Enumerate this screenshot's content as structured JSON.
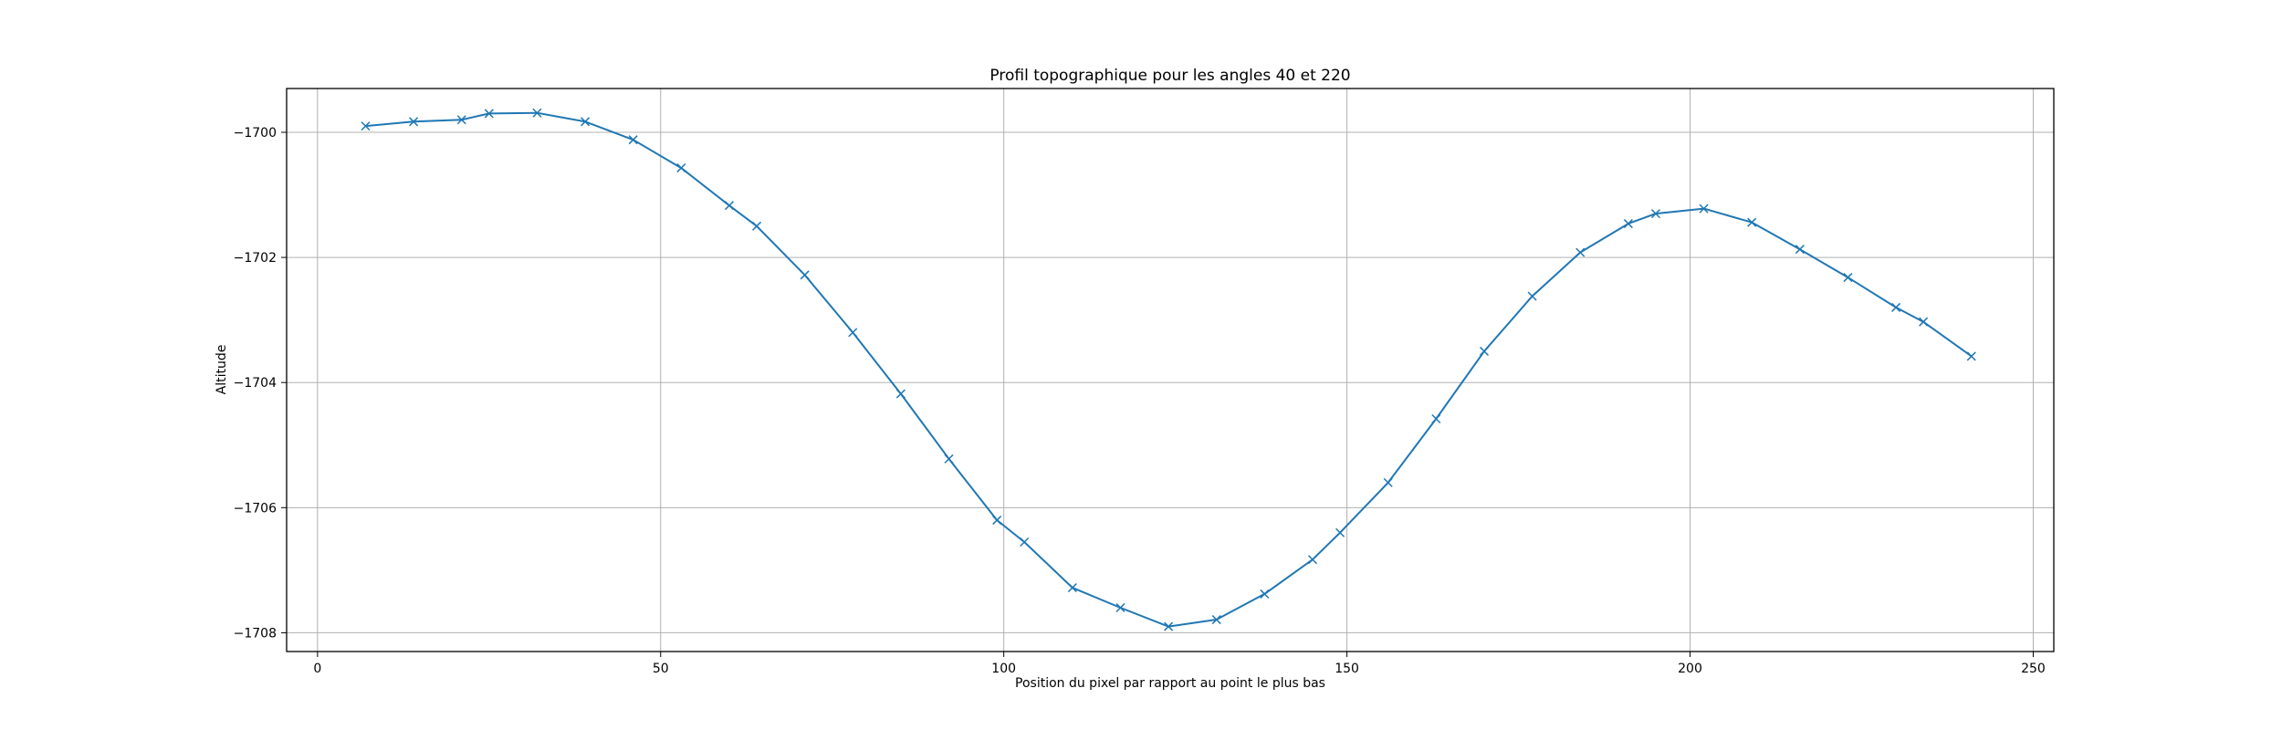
{
  "chart_data": {
    "type": "line",
    "title": "Profil topographique pour les angles 40 et 220",
    "xlabel": "Position du pixel par rapport au point le plus bas",
    "ylabel": "Altitude",
    "xlim": [
      -4.5,
      253
    ],
    "ylim": [
      -1708.3,
      -1699.3
    ],
    "xticks": [
      0,
      50,
      100,
      150,
      200,
      250
    ],
    "yticks": [
      -1708,
      -1706,
      -1704,
      -1702,
      -1700
    ],
    "grid": true,
    "marker": "x",
    "series_color": "#1f77b4",
    "series": [
      {
        "x": [
          7,
          14,
          21,
          25,
          32,
          39,
          46,
          53,
          60,
          64,
          71,
          78,
          85,
          92,
          99,
          103,
          110,
          117,
          124,
          131,
          138,
          145,
          149,
          156,
          163,
          170,
          177,
          184,
          191,
          195,
          202,
          209,
          216,
          223,
          230,
          234,
          241
        ],
        "y": [
          -1699.9,
          -1699.83,
          -1699.8,
          -1699.7,
          -1699.69,
          -1699.83,
          -1700.12,
          -1700.57,
          -1701.17,
          -1701.5,
          -1702.28,
          -1703.2,
          -1704.18,
          -1705.22,
          -1706.2,
          -1706.55,
          -1707.28,
          -1707.6,
          -1707.9,
          -1707.79,
          -1707.38,
          -1706.83,
          -1706.4,
          -1705.6,
          -1704.58,
          -1703.5,
          -1702.62,
          -1701.92,
          -1701.46,
          -1701.3,
          -1701.22,
          -1701.44,
          -1701.87,
          -1702.32,
          -1702.8,
          -1703.03,
          -1703.58
        ]
      }
    ]
  }
}
